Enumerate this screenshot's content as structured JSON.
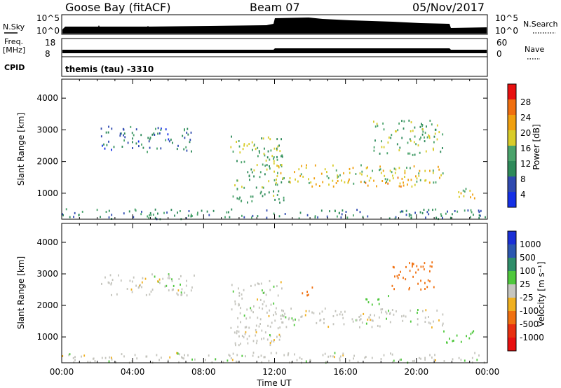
{
  "header": {
    "station": "Goose Bay (fitACF)",
    "beam": "Beam 07",
    "date": "05/Nov/2017"
  },
  "top_panels": {
    "nsky_label": "N.Sky",
    "nsky_ticks": [
      "10^5",
      "10^0"
    ],
    "nsearch_label": "N.Search",
    "nsearch_ticks": [
      "10^5",
      "10^0"
    ],
    "freq_label": "Freq.",
    "freq_unit": "[MHz]",
    "freq_ticks": [
      "18",
      "8"
    ],
    "nave_label": "Nave",
    "nave_ticks": [
      "60",
      "0"
    ],
    "cpid_label": "CPID",
    "cpid_text": "themis (tau) -3310"
  },
  "colors": {
    "power_scale": [
      "#1530e6",
      "#2f4ab0",
      "#2e8a5a",
      "#4aa36b",
      "#d9cc2a",
      "#f0a010",
      "#f06f10",
      "#e81010"
    ],
    "velocity_scale": [
      "#1a2fd6",
      "#2c57b0",
      "#2f8e6a",
      "#4fc83d",
      "#c6c6c0",
      "#f0b020",
      "#f07010",
      "#e83010",
      "#e81010"
    ],
    "scatter_blue": "#2846b0",
    "scatter_green": "#3f9a68",
    "scatter_gray": "#c4c4bd",
    "ground_green": "#4a9a5a"
  },
  "chart_data": [
    {
      "type": "heatmap",
      "title": "Power",
      "ylabel": "Slant Range [km]",
      "xlabel": "Time UT",
      "x_ticks": [
        "00:00",
        "04:00",
        "08:00",
        "12:00",
        "16:00",
        "20:00",
        "00:00"
      ],
      "y_ticks": [
        1000,
        2000,
        3000,
        4000
      ],
      "ylim": [
        180,
        4600
      ],
      "xlim_hours": [
        0,
        24
      ],
      "colorbar_label": "Power [dB]",
      "colorbar_ticks": [
        "4",
        "8",
        "12",
        "16",
        "20",
        "24",
        "28"
      ],
      "colorbar_range": [
        0,
        30
      ],
      "regions": [
        {
          "t0": 2.2,
          "t1": 7.5,
          "r0": 2300,
          "r1": 3100,
          "level": 6
        },
        {
          "t0": 9.5,
          "t1": 12.5,
          "r0": 700,
          "r1": 2800,
          "level": 12
        },
        {
          "t0": 12.0,
          "t1": 21.5,
          "r0": 1300,
          "r1": 1900,
          "level": 16
        },
        {
          "t0": 14.0,
          "t1": 20.0,
          "r0": 1200,
          "r1": 1500,
          "level": 20
        },
        {
          "t0": 17.5,
          "t1": 21.5,
          "r0": 2200,
          "r1": 3300,
          "level": 12
        },
        {
          "t0": 21.8,
          "t1": 23.3,
          "r0": 800,
          "r1": 1200,
          "level": 16
        },
        {
          "t0": 0.0,
          "t1": 24.0,
          "r0": 180,
          "r1": 500,
          "level": 8
        }
      ]
    },
    {
      "type": "heatmap",
      "title": "Velocity",
      "ylabel": "Slant Range [km]",
      "xlabel": "Time UT",
      "x_ticks": [
        "00:00",
        "04:00",
        "08:00",
        "12:00",
        "16:00",
        "20:00",
        "00:00"
      ],
      "y_ticks": [
        1000,
        2000,
        3000,
        4000
      ],
      "ylim": [
        180,
        4600
      ],
      "xlim_hours": [
        0,
        24
      ],
      "colorbar_label": "Velocity [m s⁻¹]",
      "colorbar_ticks": [
        "1000",
        "500",
        "100",
        "25",
        "-25",
        "-100",
        "-500",
        "-1000"
      ],
      "colorbar_range": [
        -1000,
        1000
      ],
      "regions": [
        {
          "t0": 2.2,
          "t1": 7.5,
          "r0": 2300,
          "r1": 3000,
          "velocity": 0
        },
        {
          "t0": 9.5,
          "t1": 12.5,
          "r0": 700,
          "r1": 2800,
          "velocity": 0
        },
        {
          "t0": 12.0,
          "t1": 21.5,
          "r0": 1300,
          "r1": 1900,
          "velocity": 0
        },
        {
          "t0": 13.5,
          "t1": 14.5,
          "r0": 2300,
          "r1": 2600,
          "velocity": -150
        },
        {
          "t0": 17.0,
          "t1": 18.5,
          "r0": 2000,
          "r1": 2300,
          "velocity": 80
        },
        {
          "t0": 18.5,
          "t1": 21.0,
          "r0": 2500,
          "r1": 3400,
          "velocity": -200
        },
        {
          "t0": 21.5,
          "t1": 23.3,
          "r0": 800,
          "r1": 1200,
          "velocity": 60
        },
        {
          "t0": 0.0,
          "t1": 24.0,
          "r0": 180,
          "r1": 500,
          "velocity": 0
        }
      ]
    }
  ]
}
